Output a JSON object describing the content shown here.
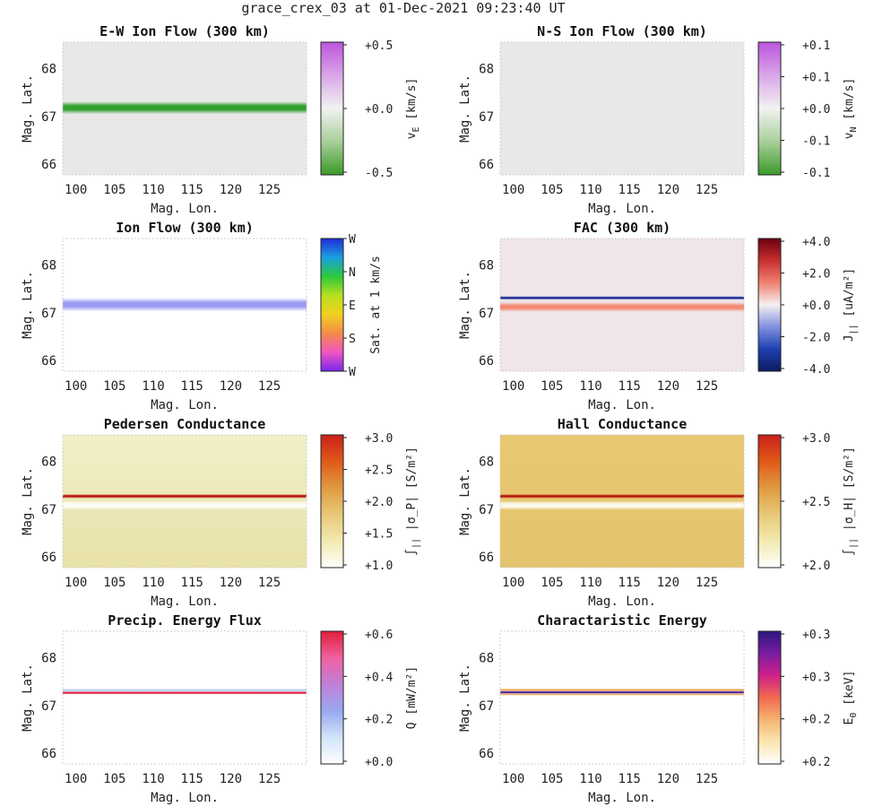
{
  "figure": {
    "title": "grace_crex_03 at 01-Dec-2021 09:23:40 UT"
  },
  "chart_data": [
    {
      "type": "heatmap",
      "id": "ew",
      "title": "E-W Ion Flow (300 km)",
      "xlabel": "Mag. Lon.",
      "ylabel": "Mag. Lat.",
      "xticks": [
        "100",
        "105",
        "110",
        "115",
        "120",
        "125"
      ],
      "yticks": [
        "66",
        "67",
        "68"
      ],
      "xlim": [
        98.3,
        129.8
      ],
      "ylim": [
        65.78,
        68.55
      ],
      "background": "#e8e8e8",
      "bands": [
        {
          "lat": 67.18,
          "width": 0.12,
          "color": "#33a02c",
          "opacity": 1.0
        }
      ],
      "colorbar": {
        "ticks": [
          "+0.5",
          "+0.0",
          "-0.5"
        ],
        "label": "v",
        "label_sub": "E",
        "label_unit": "[km/s]",
        "stops": [
          "#bb55dd",
          "#d9a6e8",
          "#f2f2f2",
          "#a8cf9a",
          "#3a9a28"
        ]
      }
    },
    {
      "type": "heatmap",
      "id": "ns",
      "title": "N-S Ion Flow (300 km)",
      "xlabel": "Mag. Lon.",
      "ylabel": "Mag. Lat.",
      "xticks": [
        "100",
        "105",
        "110",
        "115",
        "120",
        "125"
      ],
      "yticks": [
        "66",
        "67",
        "68"
      ],
      "xlim": [
        98.3,
        129.8
      ],
      "ylim": [
        65.78,
        68.55
      ],
      "background": "#e8e8e8",
      "bands": [],
      "colorbar": {
        "ticks": [
          "+0.1",
          "+0.1",
          "+0.0",
          "-0.1",
          "-0.1"
        ],
        "label": "v",
        "label_sub": "N",
        "label_unit": "[km/s]",
        "stops": [
          "#bb55dd",
          "#d9a6e8",
          "#f2f2f2",
          "#a8cf9a",
          "#3a9a28"
        ]
      }
    },
    {
      "type": "heatmap",
      "id": "ionflow",
      "title": "Ion Flow (300 km)",
      "xlabel": "Mag. Lon.",
      "ylabel": "Mag. Lat.",
      "xticks": [
        "100",
        "105",
        "110",
        "115",
        "120",
        "125"
      ],
      "yticks": [
        "66",
        "67",
        "68"
      ],
      "xlim": [
        98.3,
        129.8
      ],
      "ylim": [
        65.78,
        68.55
      ],
      "background": "#ffffff",
      "bands": [
        {
          "lat": 67.17,
          "width": 0.13,
          "color": "#9b9bf2",
          "opacity": 1.0
        }
      ],
      "colorbar": {
        "ticks": [
          "W",
          "N",
          "E",
          "S",
          "W"
        ],
        "label": "Sat. at 1 km/s",
        "label_sub": "",
        "label_unit": "",
        "stops": [
          "#1f2bd6",
          "#1a9fe0",
          "#2cc93a",
          "#b8e020",
          "#f2d020",
          "#f58a4a",
          "#f055c0",
          "#7a25f0"
        ]
      }
    },
    {
      "type": "heatmap",
      "id": "fac",
      "title": "FAC (300 km)",
      "xlabel": "Mag. Lon.",
      "ylabel": "Mag. Lat.",
      "xticks": [
        "100",
        "105",
        "110",
        "115",
        "120",
        "125"
      ],
      "yticks": [
        "66",
        "67",
        "68"
      ],
      "xlim": [
        98.3,
        129.8
      ],
      "ylim": [
        65.78,
        68.55
      ],
      "background": "#f0e5e8",
      "bands": [
        {
          "lat": 67.31,
          "width": 0.035,
          "color": "#1a2a9a",
          "opacity": 1.0
        },
        {
          "lat": 67.12,
          "width": 0.09,
          "color": "#f28a72",
          "opacity": 1.0
        }
      ],
      "colorbar": {
        "ticks": [
          "+4.0",
          "+2.0",
          "+0.0",
          "-2.0",
          "-4.0"
        ],
        "label": "J",
        "label_sub": "||",
        "label_unit": "[uA/m²]",
        "stops": [
          "#6a0010",
          "#c83030",
          "#f08070",
          "#f5f0f0",
          "#8090e0",
          "#2040b0",
          "#0c1a60"
        ]
      }
    },
    {
      "type": "heatmap",
      "id": "ped",
      "title": "Pedersen Conductance",
      "xlabel": "Mag. Lon.",
      "ylabel": "Mag. Lat.",
      "xticks": [
        "100",
        "105",
        "110",
        "115",
        "120",
        "125"
      ],
      "yticks": [
        "66",
        "67",
        "68"
      ],
      "xlim": [
        98.3,
        129.8
      ],
      "ylim": [
        65.78,
        68.55
      ],
      "background_gradient": [
        "#f1f0c8",
        "#e8e1a8"
      ],
      "bands": [
        {
          "lat": 67.27,
          "width": 0.04,
          "color": "#b81a10",
          "opacity": 1.0
        },
        {
          "lat": 67.08,
          "width": 0.09,
          "color": "#ffffff",
          "opacity": 0.9
        }
      ],
      "colorbar": {
        "ticks": [
          "+3.0",
          "+2.5",
          "+2.0",
          "+1.5",
          "+1.0"
        ],
        "label": "∫",
        "label_sub": "||",
        "label_unit": "|σ_P| [S/m²]",
        "stops": [
          "#c8201a",
          "#e05a18",
          "#e09a40",
          "#e8c878",
          "#f2eab0",
          "#ffffff"
        ]
      }
    },
    {
      "type": "heatmap",
      "id": "hall",
      "title": "Hall Conductance",
      "xlabel": "Mag. Lon.",
      "ylabel": "Mag. Lat.",
      "xticks": [
        "100",
        "105",
        "110",
        "115",
        "120",
        "125"
      ],
      "yticks": [
        "66",
        "67",
        "68"
      ],
      "xlim": [
        98.3,
        129.8
      ],
      "ylim": [
        65.78,
        68.55
      ],
      "background_gradient": [
        "#e8c870",
        "#e3c46e"
      ],
      "bands": [
        {
          "lat": 67.27,
          "width": 0.04,
          "color": "#b81a10",
          "opacity": 1.0
        },
        {
          "lat": 67.08,
          "width": 0.09,
          "color": "#ffffff",
          "opacity": 0.9
        }
      ],
      "colorbar": {
        "ticks": [
          "+3.0",
          "+2.5",
          "+2.0"
        ],
        "label": "∫",
        "label_sub": "||",
        "label_unit": "|σ_H| [S/m²]",
        "stops": [
          "#c8201a",
          "#e05a18",
          "#e09a40",
          "#e8c878",
          "#f2eab0",
          "#ffffff"
        ]
      }
    },
    {
      "type": "heatmap",
      "id": "precip",
      "title": "Precip. Energy Flux",
      "xlabel": "Mag. Lon.",
      "ylabel": "Mag. Lat.",
      "xticks": [
        "100",
        "105",
        "110",
        "115",
        "120",
        "125"
      ],
      "yticks": [
        "66",
        "67",
        "68"
      ],
      "xlim": [
        98.3,
        129.8
      ],
      "ylim": [
        65.78,
        68.55
      ],
      "background": "#ffffff",
      "bands": [
        {
          "lat": 67.32,
          "width": 0.03,
          "color": "#a8c8f0",
          "opacity": 0.9
        },
        {
          "lat": 67.265,
          "width": 0.03,
          "color": "#e02040",
          "opacity": 1.0
        }
      ],
      "colorbar": {
        "ticks": [
          "+0.6",
          "+0.4",
          "+0.2",
          "+0.0"
        ],
        "label": "Q",
        "label_sub": "",
        "label_unit": "[mW/m²]",
        "stops": [
          "#e0203c",
          "#f060a0",
          "#c080d8",
          "#98a8f0",
          "#d0e4fa",
          "#ffffff"
        ]
      }
    },
    {
      "type": "heatmap",
      "id": "chareng",
      "title": "Charactaristic Energy",
      "xlabel": "Mag. Lon.",
      "ylabel": "Mag. Lat.",
      "xticks": [
        "100",
        "105",
        "110",
        "115",
        "120",
        "125"
      ],
      "yticks": [
        "66",
        "67",
        "68"
      ],
      "xlim": [
        98.3,
        129.8
      ],
      "ylim": [
        65.78,
        68.55
      ],
      "background": "#ffffff",
      "bands": [
        {
          "lat": 67.325,
          "width": 0.025,
          "color": "#f0a040",
          "opacity": 1.0
        },
        {
          "lat": 67.275,
          "width": 0.03,
          "color": "#4a1a90",
          "opacity": 1.0
        },
        {
          "lat": 67.23,
          "width": 0.02,
          "color": "#f0b060",
          "opacity": 1.0
        }
      ],
      "colorbar": {
        "ticks": [
          "+0.3",
          "+0.3",
          "+0.2",
          "+0.2"
        ],
        "label": "E",
        "label_sub": "0",
        "label_unit": "[keV]",
        "stops": [
          "#2a1880",
          "#7a1ca0",
          "#d0208a",
          "#f06a50",
          "#f4b470",
          "#fbe6b0",
          "#ffffff"
        ]
      }
    }
  ]
}
